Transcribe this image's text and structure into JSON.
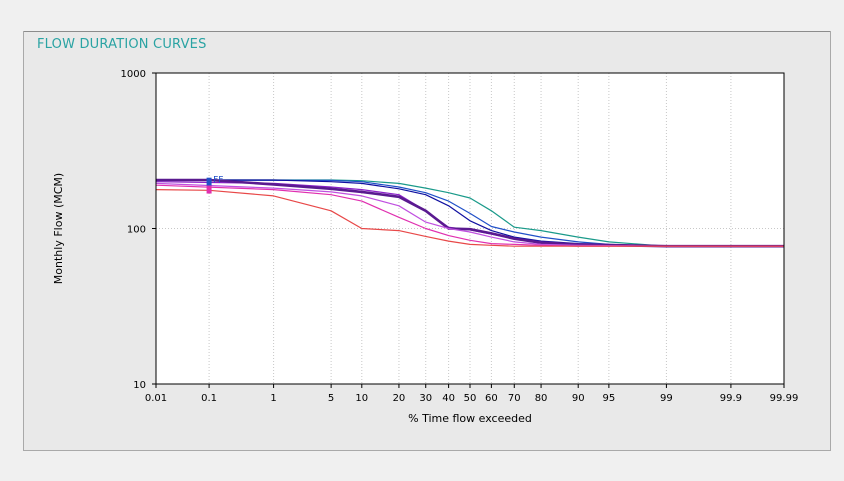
{
  "panel": {
    "title": "FLOW DURATION CURVES"
  },
  "colors": {
    "title": "#2aa3a3",
    "plot_bg": "#ffffff",
    "panel_bg": "#e9e9e9",
    "grid": "#c8c8c8"
  },
  "chart_data": {
    "type": "line",
    "title": "FLOW DURATION CURVES",
    "xlabel": "% Time flow exceeded",
    "ylabel": "Monthly Flow (MCM)",
    "x_scale": "normal-probability",
    "y_scale": "log",
    "ylim": [
      10,
      1000
    ],
    "y_ticks": [
      "10",
      "100",
      "1000"
    ],
    "x_ticks": [
      "0.01",
      "0.1",
      "1",
      "5",
      "10",
      "20",
      "30",
      "40",
      "50",
      "60",
      "70",
      "80",
      "90",
      "95",
      "99",
      "99.9",
      "99.99"
    ],
    "grid": true,
    "legend": "none",
    "series": [
      {
        "color": "#1a9a8a",
        "width": 1.2,
        "x": [
          0.01,
          5,
          10,
          20,
          30,
          40,
          50,
          60,
          70,
          80,
          90,
          95,
          99,
          99.9,
          99.99
        ],
        "y": [
          205,
          205,
          203,
          195,
          182,
          170,
          157,
          130,
          102,
          97,
          88,
          82,
          77,
          77,
          77
        ]
      },
      {
        "color": "#2050c8",
        "width": 1.2,
        "x": [
          0.01,
          5,
          10,
          20,
          30,
          40,
          50,
          60,
          70,
          80,
          90,
          95,
          99,
          99.9,
          99.99
        ],
        "y": [
          205,
          204,
          200,
          185,
          170,
          150,
          125,
          103,
          95,
          88,
          82,
          79,
          77,
          77,
          77
        ]
      },
      {
        "color": "#1010a0",
        "width": 1.2,
        "x": [
          0.01,
          1,
          5,
          10,
          20,
          30,
          40,
          50,
          60,
          70,
          80,
          90,
          99,
          99.99
        ],
        "y": [
          205,
          205,
          200,
          195,
          180,
          165,
          140,
          112,
          97,
          88,
          83,
          80,
          77,
          77
        ]
      },
      {
        "color": "#8a20c8",
        "width": 1.2,
        "x": [
          0.01,
          1,
          5,
          10,
          20,
          30,
          40,
          50,
          60,
          70,
          80,
          90,
          99,
          99.99
        ],
        "y": [
          200,
          195,
          185,
          178,
          165,
          130,
          102,
          98,
          92,
          86,
          82,
          79,
          77,
          77
        ]
      },
      {
        "color": "#5a1a90",
        "width": 2.6,
        "x": [
          0.01,
          0.1,
          1,
          5,
          10,
          20,
          30,
          40,
          50,
          60,
          70,
          80,
          90,
          99,
          99.99
        ],
        "y": [
          205,
          205,
          192,
          180,
          172,
          160,
          130,
          100,
          99,
          93,
          86,
          81,
          79,
          77,
          77
        ]
      },
      {
        "color": "#c050e0",
        "width": 1.2,
        "x": [
          0.01,
          1,
          5,
          10,
          20,
          30,
          40,
          50,
          60,
          70,
          80,
          90,
          99,
          99.99
        ],
        "y": [
          195,
          182,
          172,
          162,
          140,
          110,
          100,
          95,
          88,
          82,
          79,
          78,
          77,
          77
        ]
      },
      {
        "color": "#e030b0",
        "width": 1.2,
        "x": [
          0.01,
          1,
          5,
          10,
          20,
          30,
          40,
          50,
          60,
          70,
          80,
          90,
          99,
          99.99
        ],
        "y": [
          190,
          178,
          165,
          150,
          118,
          100,
          90,
          84,
          80,
          79,
          78,
          77,
          77,
          77
        ]
      },
      {
        "color": "#e84848",
        "width": 1.2,
        "x": [
          0.01,
          0.1,
          1,
          5,
          10,
          20,
          30,
          40,
          50,
          60,
          70,
          80,
          90,
          99,
          99.99
        ],
        "y": [
          178,
          176,
          162,
          130,
          100,
          97,
          89,
          83,
          79,
          78,
          77,
          77,
          77,
          77,
          77
        ]
      }
    ],
    "markers": [
      {
        "label": "FF",
        "color": "#2050c8",
        "x": 0.1,
        "y": 200
      },
      {
        "label": "",
        "color": "#e030b0",
        "x": 0.1,
        "y": 178
      }
    ]
  }
}
